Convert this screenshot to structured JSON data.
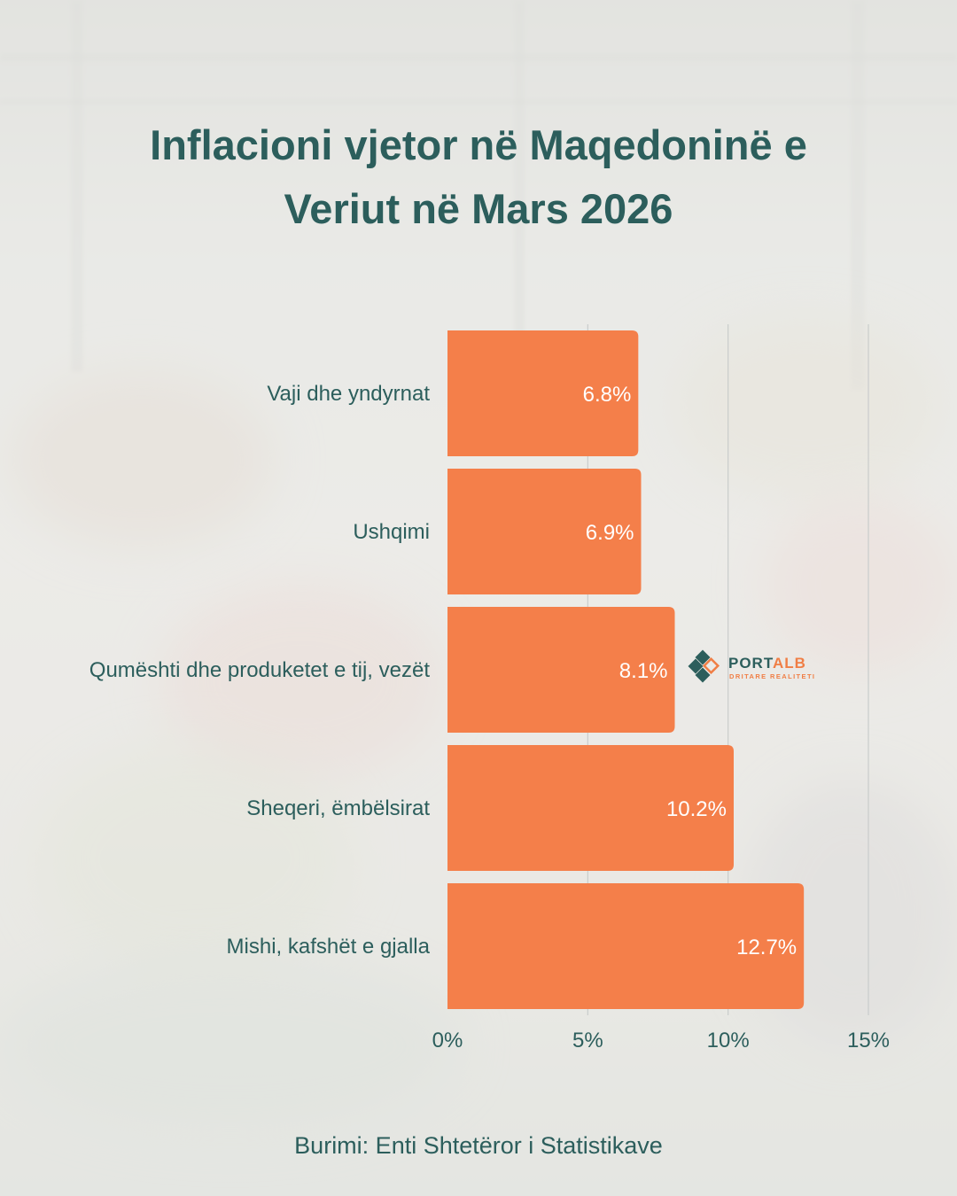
{
  "title": {
    "line1": "Inflacioni vjetor në Maqedoninë e",
    "line2": "Veriut në Mars 2026"
  },
  "logo": {
    "word_main": "PORT",
    "word_accent": "ALB",
    "tagline": "DRITARE REALITETI",
    "colors": {
      "primary": "#2c5e5c",
      "accent": "#f07e45"
    }
  },
  "source": "Burimi: Enti Shtetëror i Statistikave",
  "colors": {
    "bar": "#f47f4a",
    "text": "#2c5e5c",
    "grid": "#c9cccb"
  },
  "chart_data": {
    "type": "bar",
    "orientation": "horizontal",
    "title": "Inflacioni vjetor në Maqedoninë e Veriut në Mars 2026",
    "categories": [
      "Vaji dhe yndyrnat",
      "Ushqimi",
      "Qumështi dhe produketet e tij, vezët",
      "Sheqeri, ëmbëlsirat",
      "Mishi, kafshët e gjalla"
    ],
    "values": [
      6.8,
      6.9,
      8.1,
      10.2,
      12.7
    ],
    "value_labels": [
      "6.8%",
      "6.9%",
      "8.1%",
      "10.2%",
      "12.7%"
    ],
    "xlim": [
      0,
      15
    ],
    "x_ticks": [
      0,
      5,
      10,
      15
    ],
    "x_tick_labels": [
      "0%",
      "5%",
      "10%",
      "15%"
    ],
    "grid": true,
    "legend": "none"
  }
}
